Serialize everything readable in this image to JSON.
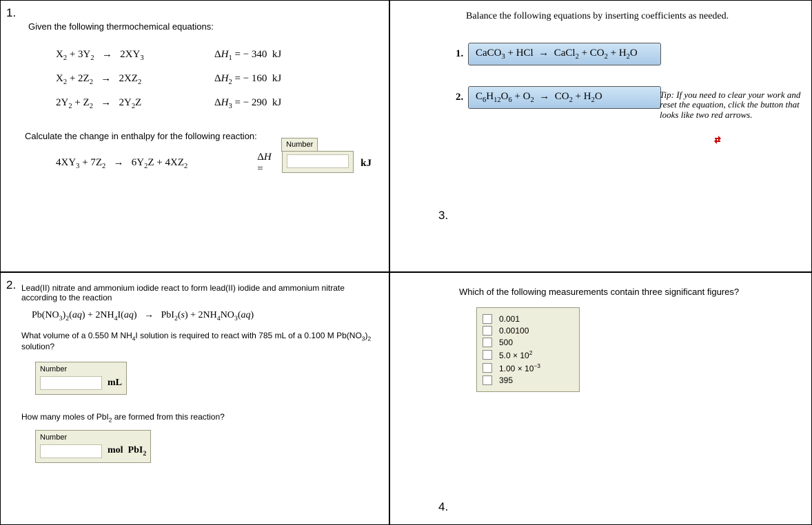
{
  "q1": {
    "number": "1.",
    "prompt": "Given the following thermochemical equations:",
    "rows": [
      {
        "eq": "X<sub>2</sub> + 3Y<sub>2</sub>&nbsp;&nbsp;&nbsp;&rarr;&nbsp;&nbsp;&nbsp;2XY<sub>3</sub>",
        "dh": "&Delta;<i>H</i><sub>1</sub> = &minus; 340&nbsp;&nbsp;kJ"
      },
      {
        "eq": "X<sub>2</sub> + 2Z<sub>2</sub>&nbsp;&nbsp;&nbsp;&rarr;&nbsp;&nbsp;&nbsp;2XZ<sub>2</sub>",
        "dh": "&Delta;<i>H</i><sub>2</sub> = &minus; 160&nbsp;&nbsp;kJ"
      },
      {
        "eq": "2Y<sub>2</sub> + Z<sub>2</sub>&nbsp;&nbsp;&nbsp;&rarr;&nbsp;&nbsp;&nbsp;2Y<sub>2</sub>Z",
        "dh": "&Delta;<i>H</i><sub>3</sub> = &minus; 290&nbsp;&nbsp;kJ"
      }
    ],
    "calc_prompt": "Calculate the change in enthalpy for the following reaction:",
    "target_eq": "4XY<sub>3</sub> + 7Z<sub>2</sub>&nbsp;&nbsp;&nbsp;&rarr;&nbsp;&nbsp;&nbsp;6Y<sub>2</sub>Z + 4XZ<sub>2</sub>",
    "dh_label": "&Delta;<i>H</i> =",
    "number_label": "Number",
    "unit": "kJ"
  },
  "q2": {
    "number": "2.",
    "intro": "Lead(II) nitrate and ammonium iodide react to form lead(II) iodide and ammonium nitrate according to the reaction",
    "eq": "Pb(NO<sub>3</sub>)<sub>2</sub>(<i>aq</i>) + 2NH<sub>4</sub>I(<i>aq</i>)&nbsp;&nbsp;&nbsp;&rarr;&nbsp;&nbsp;&nbsp;PbI<sub>2</sub>(<i>s</i>) + 2NH<sub>4</sub>NO<sub>3</sub>(<i>aq</i>)",
    "subq1": "What volume of a 0.550 M NH<sub>4</sub>I solution is required to react with 785 mL of a 0.100 M Pb(NO<sub>3</sub>)<sub>2</sub> solution?",
    "unit1": "mL",
    "subq2": "How many moles of PbI<sub>2</sub> are formed from this reaction?",
    "unit2": "mol&nbsp;&nbsp;PbI<sub>2</sub>",
    "number_label": "Number"
  },
  "q3": {
    "prompt": "Balance the following equations by inserting coefficients as needed.",
    "rows": [
      {
        "idx": "1.",
        "eq": "CaCO<sub>3</sub> + HCl&nbsp;&nbsp;&rarr;&nbsp;&nbsp;CaCl<sub>2</sub> + CO<sub>2</sub> + H<sub>2</sub>O"
      },
      {
        "idx": "2.",
        "eq": "C<sub>6</sub>H<sub>12</sub>O<sub>6</sub> + O<sub>2</sub>&nbsp;&nbsp;&rarr;&nbsp;&nbsp;CO<sub>2</sub> + H<sub>2</sub>O"
      }
    ],
    "tip": "Tip: If you need to clear your work and reset the equation, click the button that looks like two red arrows.",
    "next_number": "3."
  },
  "q4": {
    "prompt": "Which of the following measurements contain three significant figures?",
    "opts": [
      "0.001",
      "0.00100",
      "500",
      "5.0 &times; 10<sup>2</sup>",
      "1.00 &times; 10<sup>&minus;3</sup>",
      "395"
    ],
    "next_number": "4."
  }
}
